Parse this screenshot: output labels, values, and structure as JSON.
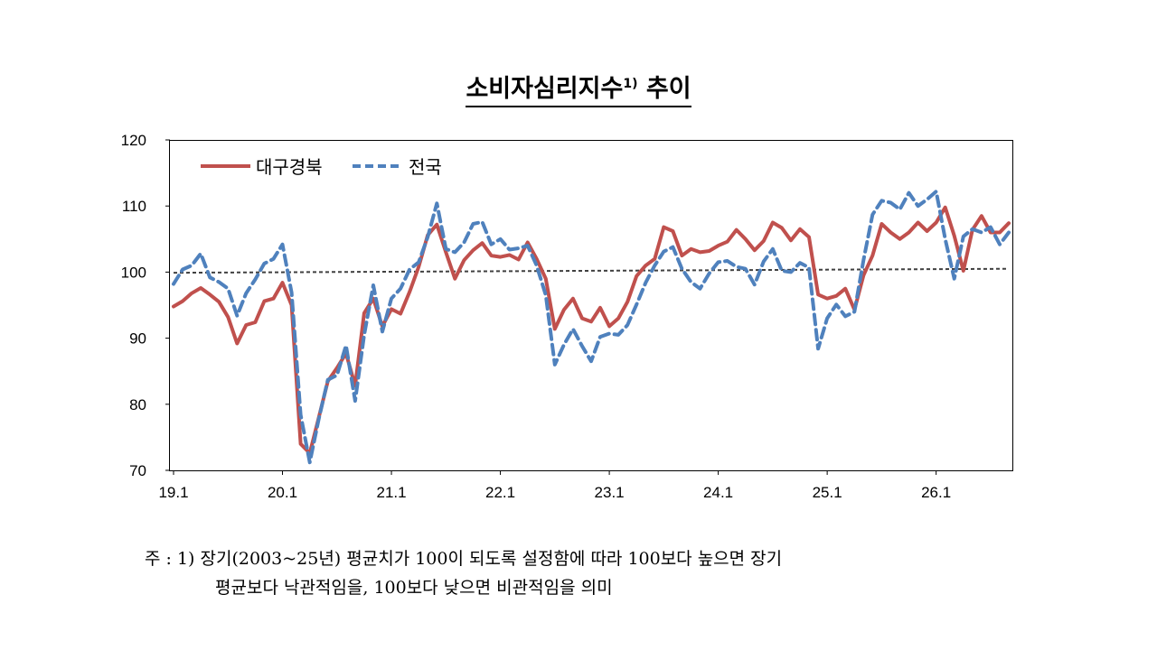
{
  "page": {
    "title_main": "소비자심리지수",
    "title_sup": "1)",
    "title_tail": " 추이",
    "note_line1": "주 : 1) 장기(2003~25년) 평균치가 100이 되도록 설정함에 따라 100보다 높으면 장기",
    "note_line2": "평균보다 낙관적임을, 100보다 낮으면 비관적임을 의미"
  },
  "colors": {
    "daegu": "#c0504d",
    "national": "#4f81bd",
    "baseline": "#404040"
  },
  "chart_data": {
    "type": "line",
    "title": "소비자심리지수1) 추이",
    "xlabel": "",
    "ylabel": "",
    "ylim": [
      70,
      120
    ],
    "yticks": [
      70,
      80,
      90,
      100,
      110,
      120
    ],
    "x_start": "2019-01",
    "x_end": "2026-10",
    "x_ticks": [
      {
        "label": "19.1",
        "month_index": 0
      },
      {
        "label": "20.1",
        "month_index": 12
      },
      {
        "label": "21.1",
        "month_index": 24
      },
      {
        "label": "22.1",
        "month_index": 36
      },
      {
        "label": "23.1",
        "month_index": 48
      },
      {
        "label": "24.1",
        "month_index": 60
      },
      {
        "label": "25.1",
        "month_index": 72
      },
      {
        "label": "26.1",
        "month_index": 84
      }
    ],
    "legend_position": "top-left",
    "series": [
      {
        "name": "대구경북",
        "style": "solid",
        "values": [
          94.8,
          95.6,
          96.8,
          97.6,
          96.6,
          95.5,
          93.2,
          89.2,
          92.0,
          92.4,
          95.6,
          96.0,
          98.4,
          95.0,
          74.0,
          72.6,
          78.0,
          83.5,
          85.5,
          87.7,
          82.8,
          93.8,
          96.0,
          91.8,
          94.4,
          93.7,
          97.0,
          100.8,
          105.6,
          107.2,
          103.0,
          99.0,
          101.8,
          103.3,
          104.4,
          102.5,
          102.3,
          102.6,
          101.9,
          104.5,
          102.0,
          99.0,
          91.4,
          94.3,
          96.0,
          93.0,
          92.5,
          94.6,
          91.8,
          93.0,
          95.5,
          99.4,
          101.0,
          102.0,
          106.8,
          106.2,
          102.5,
          103.5,
          103.0,
          103.2,
          104.0,
          104.6,
          106.4,
          105.0,
          103.3,
          104.7,
          107.5,
          106.7,
          104.8,
          106.5,
          105.3,
          96.6,
          96.0,
          96.4,
          97.5,
          94.3,
          99.5,
          102.5,
          107.3,
          106.0,
          105.0,
          106.0,
          107.5,
          106.2,
          107.5,
          109.8,
          105.5,
          100.2,
          106.4,
          108.5,
          106.0,
          106.0,
          107.4
        ]
      },
      {
        "name": "전국",
        "style": "dashed",
        "values": [
          98.2,
          100.4,
          101.0,
          102.8,
          99.2,
          98.5,
          97.5,
          93.4,
          96.8,
          98.9,
          101.3,
          102.0,
          104.2,
          96.9,
          78.4,
          71.2,
          77.8,
          83.7,
          84.4,
          88.9,
          80.5,
          90.5,
          98.0,
          91.0,
          96.0,
          97.5,
          100.4,
          101.5,
          105.3,
          110.4,
          103.5,
          103.0,
          104.5,
          107.3,
          107.6,
          104.2,
          105.0,
          103.4,
          103.6,
          104.0,
          101.0,
          96.5,
          86.0,
          89.0,
          91.4,
          88.8,
          86.5,
          90.2,
          90.7,
          90.5,
          92.0,
          95.1,
          98.4,
          101.0,
          103.1,
          103.8,
          100.5,
          98.5,
          97.5,
          99.8,
          101.5,
          101.7,
          100.8,
          100.5,
          98.1,
          101.6,
          103.5,
          100.2,
          100.0,
          101.4,
          100.7,
          88.4,
          93.0,
          95.1,
          93.3,
          94.0,
          101.8,
          108.7,
          110.8,
          110.5,
          109.5,
          112.0,
          110.0,
          111.0,
          112.2,
          105.0,
          99.0,
          105.4,
          106.5,
          106.0,
          106.8,
          104.2,
          106.0
        ]
      },
      {
        "name": "",
        "style": "dotted",
        "values_endpoints": [
          99.9,
          100.5
        ]
      }
    ]
  }
}
